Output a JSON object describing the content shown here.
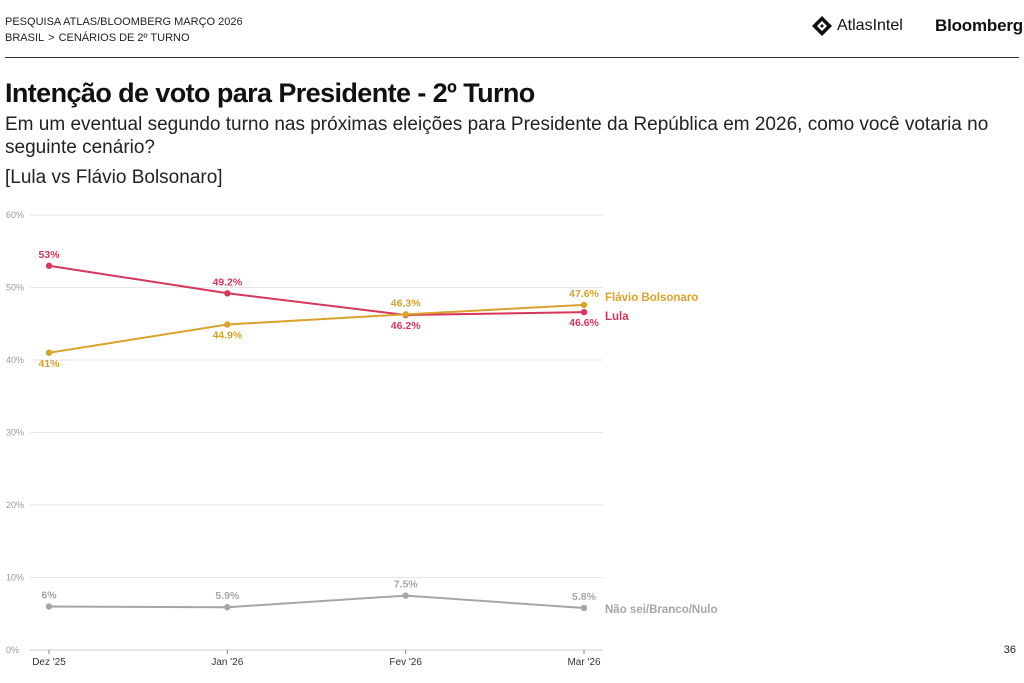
{
  "header": {
    "survey": "PESQUISA ATLAS/BLOOMBERG MARÇO 2026",
    "breadcrumb": [
      "BRASIL",
      "CENÁRIOS DE 2º TURNO"
    ],
    "breadcrumb_sep": ">",
    "brand_atlas": "AtlasIntel",
    "brand_bloomberg": "Bloomberg",
    "atlas_logo_icon": "atlas-diamond-icon"
  },
  "title": "Intenção de voto para Presidente - 2º Turno",
  "subtitle": "Em um eventual segundo turno nas próximas eleições para Presidente da República em 2026, como você votaria no seguinte cenário?",
  "scenario": "[Lula vs Flávio Bolsonaro]",
  "page_number": "36",
  "colors": {
    "lula": "#d6355c",
    "flavio": "#d9a22b",
    "other": "#a6a6a6",
    "grid": "#e6e6e6",
    "tick": "#999999"
  },
  "chart_data": {
    "type": "line",
    "categories": [
      "Dez '25",
      "Jan '26",
      "Fev '26",
      "Mar '26"
    ],
    "ylim": [
      0,
      60
    ],
    "yticks": [
      "0%",
      "10%",
      "20%",
      "30%",
      "40%",
      "50%",
      "60%"
    ],
    "grid": true,
    "series": [
      {
        "name": "Lula",
        "color": "#d6355c",
        "values": [
          53,
          49.2,
          46.2,
          46.6
        ],
        "labels": [
          "53%",
          "49.2%",
          "46.2%",
          "46.6%"
        ],
        "label_pos": [
          "above",
          "above",
          "below",
          "below"
        ]
      },
      {
        "name": "Flávio Bolsonaro",
        "color": "#d9a22b",
        "values": [
          41,
          44.9,
          46.3,
          47.6
        ],
        "labels": [
          "41%",
          "44.9%",
          "46.3%",
          "47.6%"
        ],
        "label_pos": [
          "below",
          "below",
          "above",
          "above"
        ]
      },
      {
        "name": "Não sei/Branco/Nulo",
        "color": "#a6a6a6",
        "values": [
          6,
          5.9,
          7.5,
          5.8
        ],
        "labels": [
          "6%",
          "5.9%",
          "7.5%",
          "5.8%"
        ],
        "label_pos": [
          "above",
          "above",
          "above",
          "above"
        ]
      }
    ]
  }
}
